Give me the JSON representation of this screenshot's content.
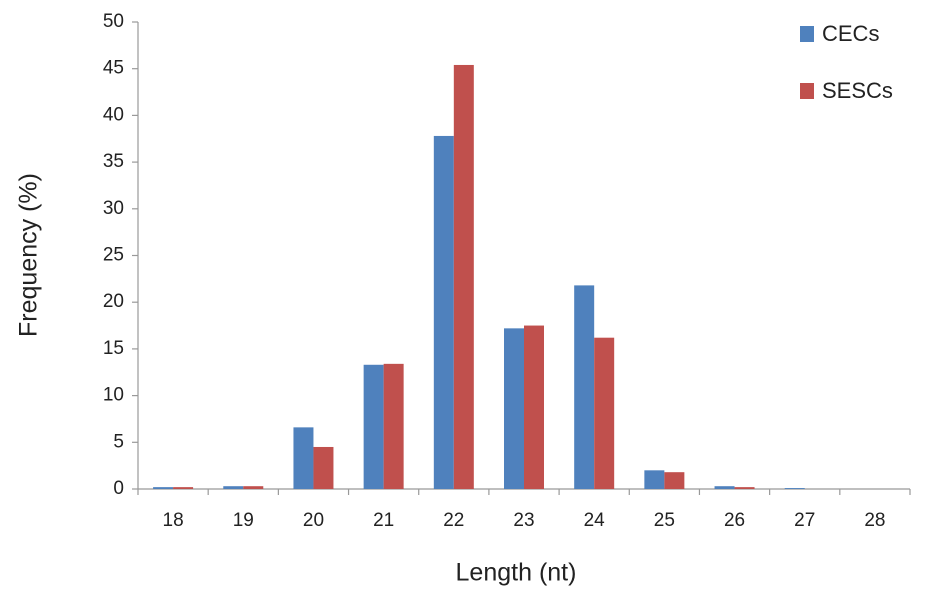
{
  "chart_data": {
    "type": "bar",
    "x_label": "Length (nt)",
    "y_label": "Frequency (%)",
    "categories": [
      "18",
      "19",
      "20",
      "21",
      "22",
      "23",
      "24",
      "25",
      "26",
      "27",
      "28"
    ],
    "series": [
      {
        "name": "CECs",
        "color": "#4f81bd",
        "values": [
          0.2,
          0.3,
          6.6,
          13.3,
          37.8,
          17.2,
          21.8,
          2.0,
          0.3,
          0.1,
          0
        ]
      },
      {
        "name": "SESCs",
        "color": "#c0504d",
        "values": [
          0.2,
          0.3,
          4.5,
          13.4,
          45.4,
          17.5,
          16.2,
          1.8,
          0.2,
          0,
          0
        ]
      }
    ],
    "ylim": [
      0,
      50
    ],
    "yticks": [
      0,
      5,
      10,
      15,
      20,
      25,
      30,
      35,
      40,
      45,
      50
    ],
    "grid": false,
    "legend": "top-right"
  }
}
